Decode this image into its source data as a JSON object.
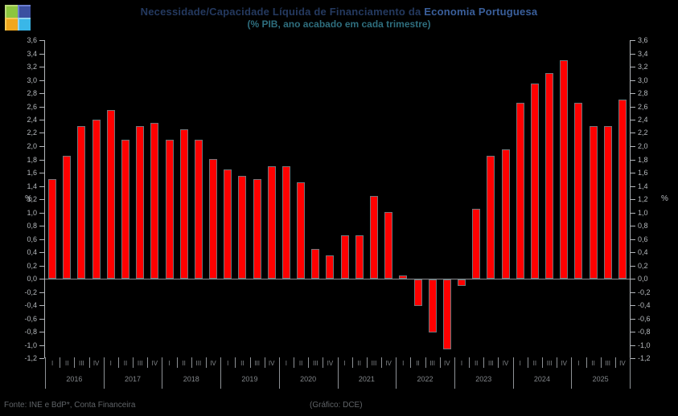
{
  "header": {
    "title_main": "Necessidade/Capacidade Líquida de Financiamento da ",
    "title_accent": "Economia Portuguesa",
    "subtitle": "(% PIB, ano acabado em cada trimestre)"
  },
  "axis": {
    "percent_left": "%",
    "percent_right": "%",
    "y_tick_labels": [
      "3,6",
      "3,4",
      "3,2",
      "3,0",
      "2,8",
      "2,6",
      "2,4",
      "2,2",
      "2,0",
      "1,8",
      "1,6",
      "1,4",
      "1,2",
      "1,0",
      "0,8",
      "0,6",
      "0,4",
      "0,2",
      "0,0",
      "-0,2",
      "-0,4",
      "-0,6",
      "-0,8",
      "-1,0",
      "-1,2"
    ]
  },
  "footer": {
    "source": "Fonte: INE e BdP*, Conta Financeira",
    "credit": "(Gráfico: DCE)"
  },
  "logo": {
    "colors": {
      "top_left": "#8cc63f",
      "top_right": "#3b4fa0",
      "bottom_left": "#f0a71d",
      "bottom_right": "#39b7e8"
    }
  },
  "chart_data": {
    "type": "bar",
    "title": "Necessidade/Capacidade Líquida de Financiamento da Economia Portuguesa",
    "subtitle": "(% PIB, ano acabado em cada trimestre)",
    "ylabel": "%",
    "ylim": [
      -1.2,
      3.6
    ],
    "ytick_step": 0.2,
    "grid": false,
    "legend": "none",
    "bar_color": "#ff0000",
    "quarters": [
      "I",
      "II",
      "III",
      "IV"
    ],
    "years": [
      "2016",
      "2017",
      "2018",
      "2019",
      "2020",
      "2021",
      "2022",
      "2023",
      "2024",
      "2025"
    ],
    "categories": [
      "2016-I",
      "2016-II",
      "2016-III",
      "2016-IV",
      "2017-I",
      "2017-II",
      "2017-III",
      "2017-IV",
      "2018-I",
      "2018-II",
      "2018-III",
      "2018-IV",
      "2019-I",
      "2019-II",
      "2019-III",
      "2019-IV",
      "2020-I",
      "2020-II",
      "2020-III",
      "2020-IV",
      "2021-I",
      "2021-II",
      "2021-III",
      "2021-IV",
      "2022-I",
      "2022-II",
      "2022-III",
      "2022-IV",
      "2023-I",
      "2023-II",
      "2023-III",
      "2023-IV",
      "2024-I",
      "2024-II",
      "2024-III",
      "2024-IV",
      "2025-I",
      "2025-II",
      "2025-III",
      "2025-IV"
    ],
    "values": [
      1.5,
      1.85,
      2.3,
      2.4,
      2.55,
      2.1,
      2.3,
      2.35,
      2.1,
      2.25,
      2.1,
      1.8,
      1.65,
      1.55,
      1.5,
      1.7,
      1.7,
      1.45,
      0.45,
      0.35,
      0.65,
      0.65,
      1.25,
      1.0,
      0.05,
      -0.4,
      -0.8,
      -1.05,
      -0.1,
      1.05,
      1.85,
      1.95,
      2.65,
      2.95,
      3.1,
      3.3,
      2.65,
      2.3,
      2.3,
      2.7
    ]
  }
}
